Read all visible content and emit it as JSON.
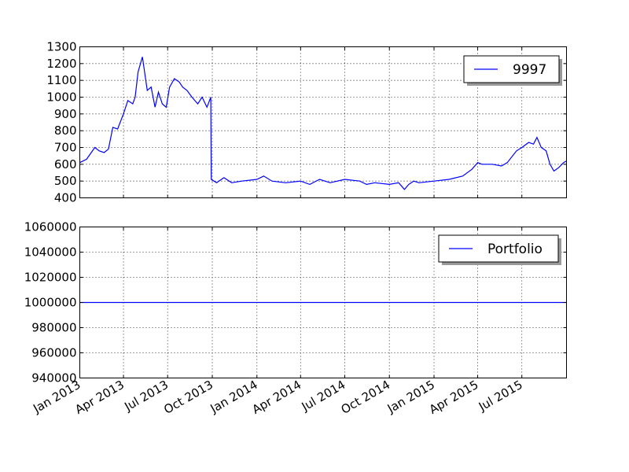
{
  "chart_data": [
    {
      "type": "line",
      "title": "",
      "xlabel": "",
      "ylabel": "",
      "ylim": [
        400,
        1300
      ],
      "yticks": [
        400,
        500,
        600,
        700,
        800,
        900,
        1000,
        1100,
        1200,
        1300
      ],
      "grid": true,
      "legend_position": "upper right",
      "series": [
        {
          "name": "9997",
          "color": "#0000ff",
          "x": [
            "2013-01-01",
            "2013-01-15",
            "2013-02-01",
            "2013-02-10",
            "2013-02-20",
            "2013-03-01",
            "2013-03-10",
            "2013-03-20",
            "2013-04-01",
            "2013-04-10",
            "2013-04-20",
            "2013-04-25",
            "2013-05-01",
            "2013-05-10",
            "2013-05-20",
            "2013-05-28",
            "2013-06-01",
            "2013-06-05",
            "2013-06-12",
            "2013-06-20",
            "2013-06-28",
            "2013-07-05",
            "2013-07-15",
            "2013-07-25",
            "2013-08-01",
            "2013-08-10",
            "2013-08-20",
            "2013-09-01",
            "2013-09-10",
            "2013-09-20",
            "2013-09-28",
            "2013-09-29",
            "2013-10-10",
            "2013-10-25",
            "2013-11-10",
            "2013-12-01",
            "2014-01-01",
            "2014-01-15",
            "2014-02-01",
            "2014-03-01",
            "2014-04-01",
            "2014-04-20",
            "2014-05-10",
            "2014-06-01",
            "2014-07-01",
            "2014-08-01",
            "2014-08-15",
            "2014-09-01",
            "2014-10-01",
            "2014-10-20",
            "2014-11-01",
            "2014-11-10",
            "2014-11-20",
            "2014-12-01",
            "2015-01-01",
            "2015-02-01",
            "2015-03-01",
            "2015-03-20",
            "2015-04-01",
            "2015-04-10",
            "2015-05-01",
            "2015-05-20",
            "2015-06-01",
            "2015-06-20",
            "2015-07-01",
            "2015-07-15",
            "2015-07-25",
            "2015-08-01",
            "2015-08-10",
            "2015-08-20",
            "2015-08-28",
            "2015-09-05",
            "2015-09-15",
            "2015-09-25",
            "2015-10-01"
          ],
          "values": [
            610,
            630,
            700,
            680,
            670,
            690,
            820,
            810,
            900,
            980,
            960,
            1000,
            1150,
            1240,
            1040,
            1060,
            1000,
            940,
            1030,
            960,
            940,
            1060,
            1110,
            1090,
            1060,
            1040,
            1000,
            960,
            1000,
            940,
            1000,
            510,
            490,
            520,
            490,
            500,
            510,
            530,
            500,
            490,
            500,
            480,
            510,
            490,
            510,
            500,
            480,
            490,
            480,
            490,
            450,
            480,
            500,
            490,
            500,
            510,
            530,
            570,
            610,
            600,
            600,
            590,
            610,
            680,
            700,
            730,
            720,
            760,
            700,
            680,
            600,
            560,
            580,
            610,
            620
          ]
        }
      ]
    },
    {
      "type": "line",
      "title": "",
      "xlabel": "",
      "ylabel": "",
      "ylim": [
        940000,
        1060000
      ],
      "yticks": [
        940000,
        960000,
        980000,
        1000000,
        1020000,
        1040000,
        1060000
      ],
      "grid": true,
      "legend_position": "upper right",
      "series": [
        {
          "name": "Portfolio",
          "color": "#0000ff",
          "x": [
            "2013-01-01",
            "2015-10-01"
          ],
          "values": [
            1000000,
            1000000
          ]
        }
      ]
    }
  ],
  "x_axis": {
    "tick_labels": [
      "Jan 2013",
      "Apr 2013",
      "Jul 2013",
      "Oct 2013",
      "Jan 2014",
      "Apr 2014",
      "Jul 2014",
      "Oct 2014",
      "Jan 2015",
      "Apr 2015",
      "Jul 2015"
    ],
    "tick_dates": [
      "2013-01-01",
      "2013-04-01",
      "2013-07-01",
      "2013-10-01",
      "2014-01-01",
      "2014-04-01",
      "2014-07-01",
      "2014-10-01",
      "2015-01-01",
      "2015-04-01",
      "2015-07-01"
    ],
    "range": [
      "2013-01-01",
      "2015-10-01"
    ]
  },
  "legend": {
    "top_label": "9997",
    "bottom_label": "Portfolio"
  }
}
